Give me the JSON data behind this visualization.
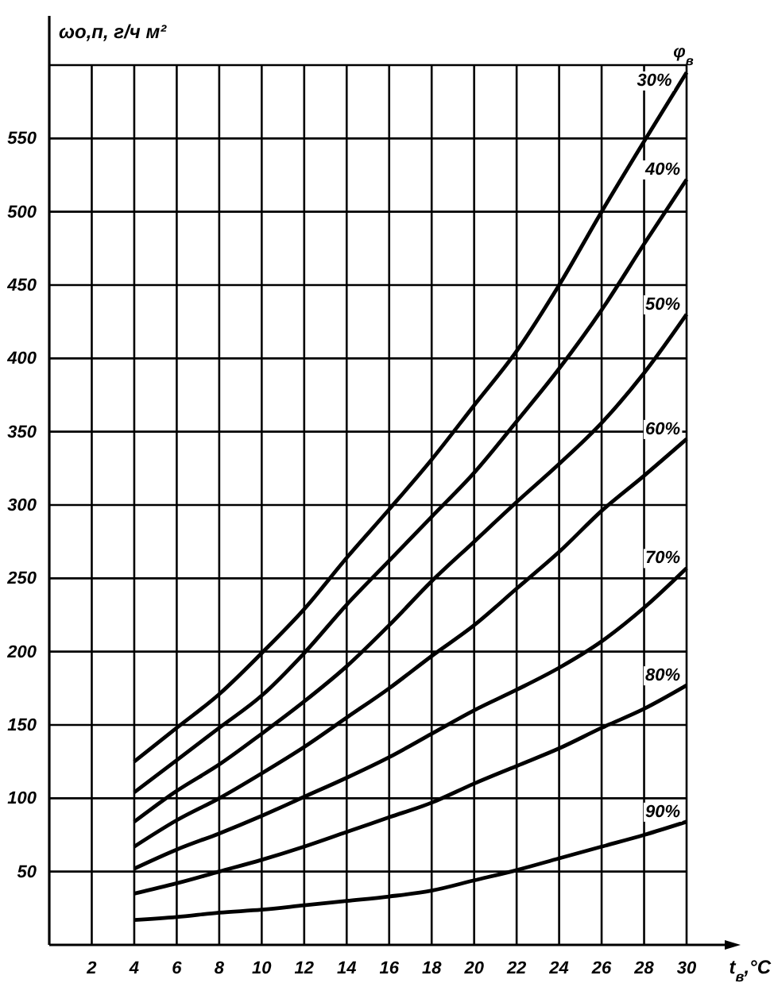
{
  "chart_data": {
    "type": "line",
    "ylabel": "ωо,п, г/ч м²",
    "xlabel": "t$_{в}$,°C",
    "legend_title": "φ$_{в}$",
    "x": [
      4,
      6,
      8,
      10,
      12,
      14,
      16,
      18,
      20,
      22,
      24,
      26,
      28,
      30
    ],
    "series": [
      {
        "name": "30%",
        "color": "#000000",
        "values": [
          125,
          148,
          171,
          199,
          229,
          264,
          297,
          331,
          368,
          405,
          450,
          500,
          548,
          595
        ]
      },
      {
        "name": "40%",
        "color": "#000000",
        "values": [
          104,
          126,
          148,
          170,
          199,
          232,
          262,
          292,
          322,
          357,
          393,
          433,
          478,
          522
        ]
      },
      {
        "name": "50%",
        "color": "#000000",
        "values": [
          84,
          105,
          123,
          144,
          166,
          190,
          218,
          248,
          275,
          302,
          328,
          356,
          390,
          430
        ]
      },
      {
        "name": "60%",
        "color": "#000000",
        "values": [
          67,
          85,
          100,
          117,
          135,
          155,
          175,
          197,
          218,
          243,
          268,
          296,
          320,
          345
        ]
      },
      {
        "name": "70%",
        "color": "#000000",
        "values": [
          52,
          65,
          76,
          88,
          101,
          114,
          128,
          144,
          160,
          174,
          189,
          207,
          230,
          257
        ]
      },
      {
        "name": "80%",
        "color": "#000000",
        "values": [
          35,
          42,
          50,
          58,
          67,
          77,
          87,
          97,
          110,
          122,
          134,
          148,
          161,
          177
        ]
      },
      {
        "name": "90%",
        "color": "#000000",
        "values": [
          17,
          19,
          22,
          24,
          27,
          30,
          33,
          37,
          44,
          51,
          59,
          67,
          75,
          84
        ]
      }
    ],
    "xlim": [
      0,
      30
    ],
    "xticks": [
      2,
      4,
      6,
      8,
      10,
      12,
      14,
      16,
      18,
      20,
      22,
      24,
      26,
      28,
      30
    ],
    "ylim": [
      0,
      600
    ],
    "yticks": [
      50,
      100,
      150,
      200,
      250,
      300,
      350,
      400,
      450,
      500,
      550,
      {
        "value": 600,
        "label": null
      }
    ],
    "grid": true,
    "marker": "none",
    "line_style": "solid"
  }
}
